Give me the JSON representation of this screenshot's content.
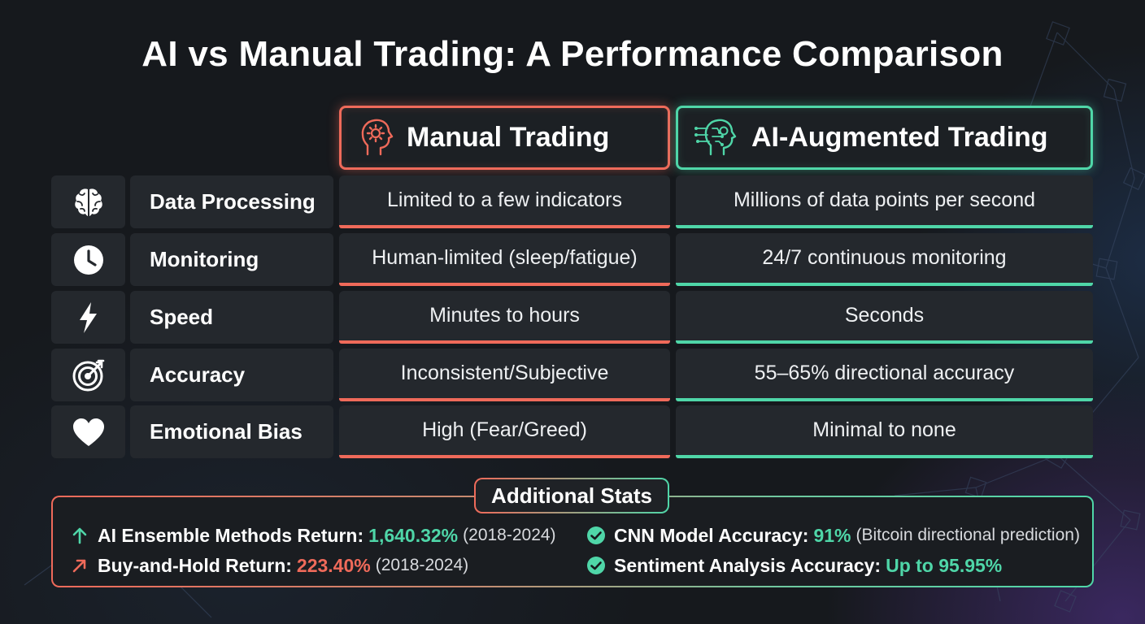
{
  "title": "AI vs Manual Trading: A Performance Comparison",
  "columns": {
    "manual": {
      "label": "Manual Trading",
      "icon": "head-gear-icon",
      "color": "#ef6a5a"
    },
    "ai": {
      "label": "AI-Augmented Trading",
      "icon": "ai-head-circuit-icon",
      "color": "#4fd6a8"
    }
  },
  "rows": [
    {
      "icon": "brain-icon",
      "label": "Data Processing",
      "manual": "Limited to a few indicators",
      "ai": "Millions of data points per second"
    },
    {
      "icon": "clock-icon",
      "label": "Monitoring",
      "manual": "Human-limited (sleep/fatigue)",
      "ai": "24/7 continuous monitoring"
    },
    {
      "icon": "lightning-icon",
      "label": "Speed",
      "manual": "Minutes to hours",
      "ai": "Seconds"
    },
    {
      "icon": "target-icon",
      "label": "Accuracy",
      "manual": "Inconsistent/Subjective",
      "ai": "55–65% directional accuracy"
    },
    {
      "icon": "heart-icon",
      "label": "Emotional Bias",
      "manual": "High (Fear/Greed)",
      "ai": "Minimal to none"
    }
  ],
  "stats": {
    "title": "Additional Stats",
    "items": [
      {
        "icon": "arrow-up-icon",
        "label": "AI Ensemble Methods Return:",
        "value": "1,640.32%",
        "note": "(2018-2024)",
        "color": "#4fd6a8"
      },
      {
        "icon": "arrow-up-right-icon",
        "label": "Buy-and-Hold Return:",
        "value": "223.40%",
        "note": "(2018-2024)",
        "color": "#ef6a5a"
      },
      {
        "icon": "check-circle-icon",
        "label": "CNN Model Accuracy:",
        "value": "91%",
        "note": "(Bitcoin directional prediction)",
        "color": "#4fd6a8"
      },
      {
        "icon": "check-circle-icon",
        "label": "Sentiment Analysis Accuracy:",
        "value": "Up to 95.95%",
        "note": "",
        "color": "#4fd6a8"
      }
    ]
  }
}
